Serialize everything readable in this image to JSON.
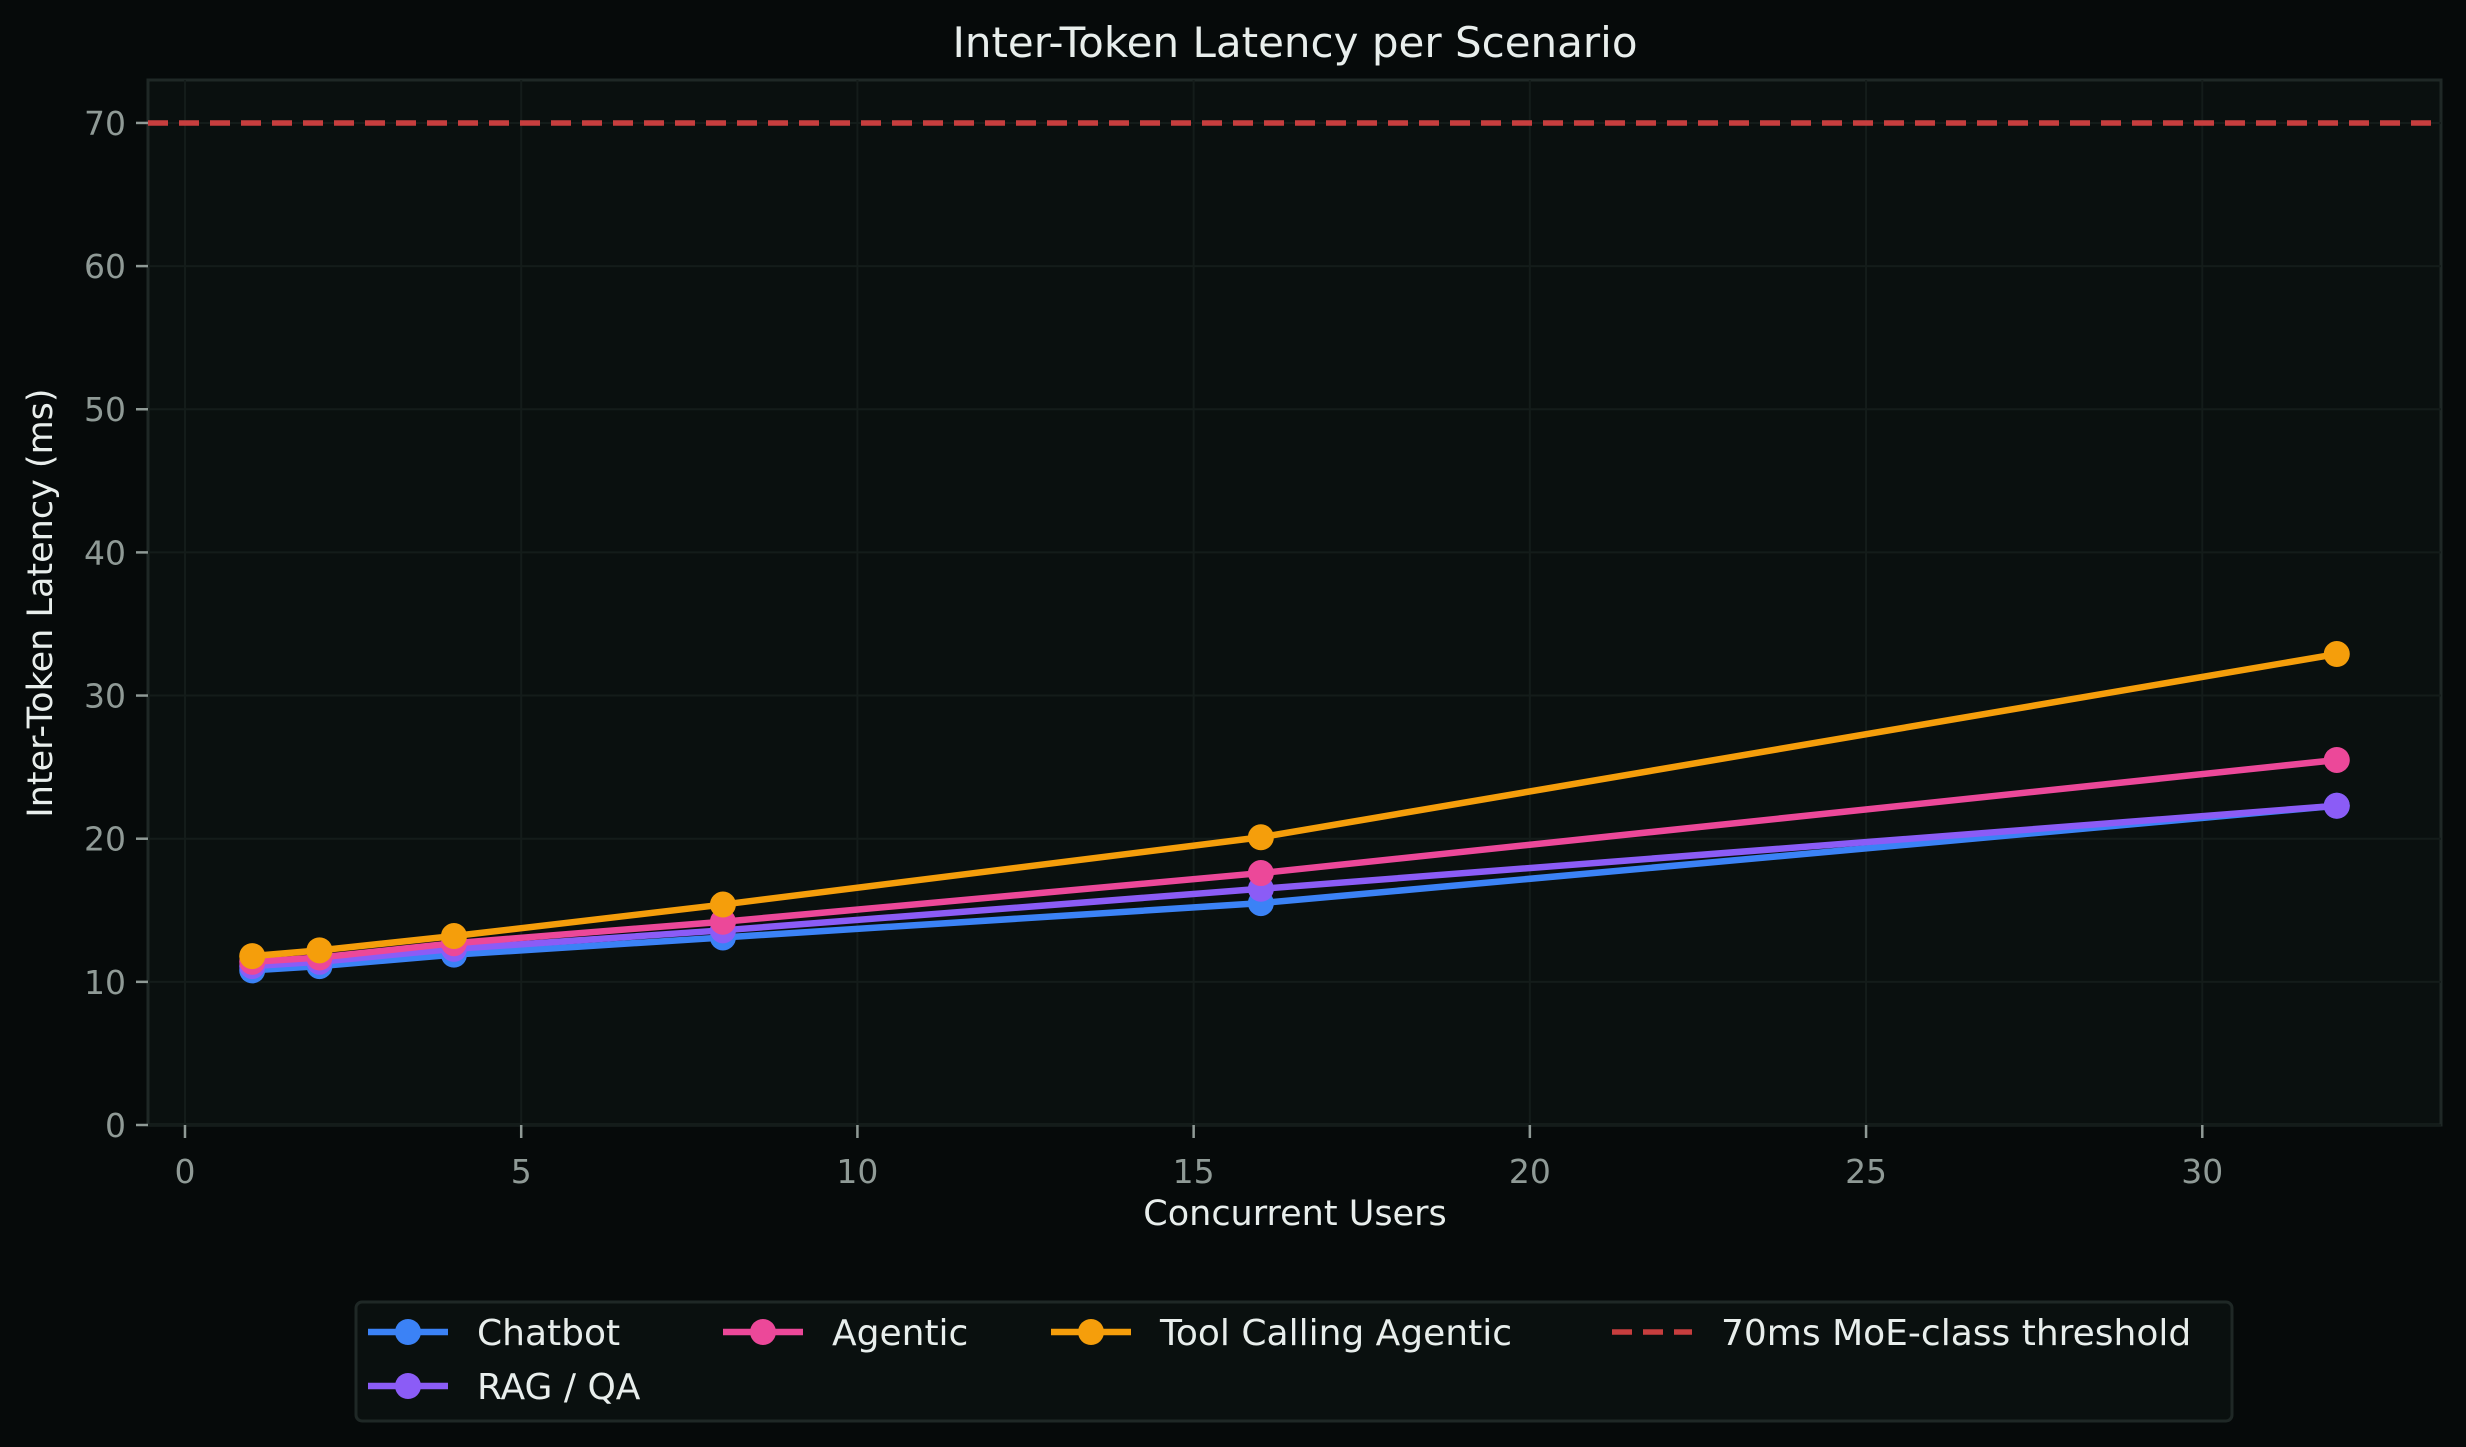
{
  "chart_data": {
    "type": "line",
    "title": "Inter-Token Latency per Scenario",
    "xlabel": "Concurrent Users",
    "ylabel": "Inter-Token Latency (ms)",
    "x": [
      1,
      2,
      4,
      8,
      16,
      32
    ],
    "xlim": [
      -0.55,
      33.55
    ],
    "ylim": [
      0,
      73
    ],
    "xticks": [
      0,
      5,
      10,
      15,
      20,
      25,
      30
    ],
    "yticks": [
      0,
      10,
      20,
      30,
      40,
      50,
      60,
      70
    ],
    "grid": true,
    "legend_position": "bottom-center, below axes",
    "series": [
      {
        "name": "Chatbot",
        "color": "#3b82f6",
        "values": [
          10.8,
          11.1,
          11.9,
          13.1,
          15.5,
          22.3
        ]
      },
      {
        "name": "RAG / QA",
        "color": "#8b5cf6",
        "values": [
          11.1,
          11.4,
          12.3,
          13.6,
          16.5,
          22.3
        ]
      },
      {
        "name": "Agentic",
        "color": "#ec4899",
        "values": [
          11.4,
          11.7,
          12.7,
          14.2,
          17.6,
          25.5
        ]
      },
      {
        "name": "Tool Calling Agentic",
        "color": "#f59e0b",
        "values": [
          11.8,
          12.2,
          13.2,
          15.4,
          20.1,
          32.9
        ]
      }
    ],
    "reference_lines": [
      {
        "name": "70ms MoE-class threshold",
        "y": 70,
        "color": "#c73e3e",
        "style": "dashed"
      }
    ]
  },
  "labels": {
    "title": "Inter-Token Latency per Scenario",
    "xlabel": "Concurrent Users",
    "ylabel": "Inter-Token Latency (ms)"
  },
  "legend": {
    "items": [
      {
        "label": "Chatbot",
        "color": "#3b82f6",
        "style": "line-marker"
      },
      {
        "label": "Agentic",
        "color": "#ec4899",
        "style": "line-marker"
      },
      {
        "label": "Tool Calling Agentic",
        "color": "#f59e0b",
        "style": "line-marker"
      },
      {
        "label": "70ms MoE-class threshold",
        "color": "#c73e3e",
        "style": "dashed"
      },
      {
        "label": "RAG / QA",
        "color": "#8b5cf6",
        "style": "line-marker"
      }
    ]
  },
  "colors": {
    "background": "#060a0a",
    "plot_background": "#0a100f",
    "frame": "#1f2826",
    "grid": "#141c1a",
    "tick": "#8f9a96",
    "text": "#e8eeec"
  }
}
